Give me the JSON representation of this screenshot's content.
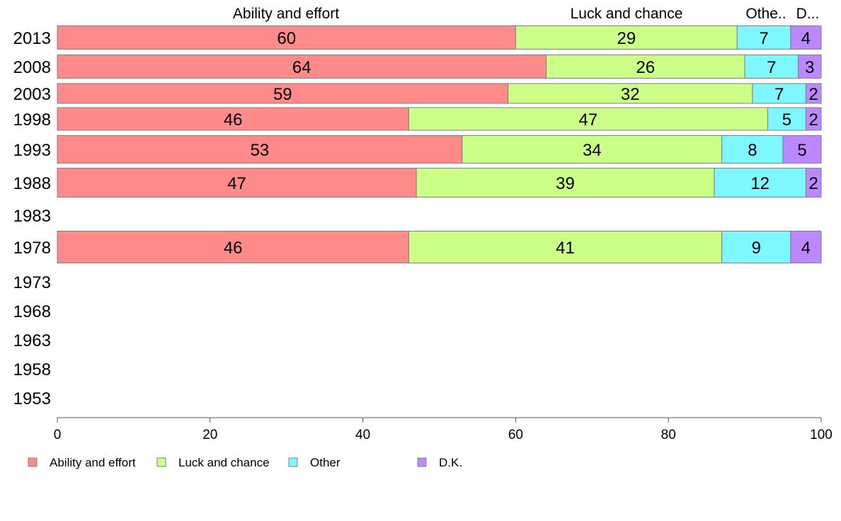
{
  "chart_data": {
    "type": "bar",
    "orientation": "horizontal",
    "stacked": true,
    "categories": [
      "2013",
      "2008",
      "2003",
      "1998",
      "1993",
      "1988",
      "1983",
      "1978",
      "1973",
      "1968",
      "1963",
      "1958",
      "1953"
    ],
    "series": [
      {
        "name": "Ability and effort",
        "color": "#ff8a8a",
        "values": [
          60,
          64,
          59,
          46,
          53,
          47,
          null,
          46,
          null,
          null,
          null,
          null,
          null
        ]
      },
      {
        "name": "Luck and chance",
        "color": "#ccff88",
        "values": [
          29,
          26,
          32,
          47,
          34,
          39,
          null,
          41,
          null,
          null,
          null,
          null,
          null
        ]
      },
      {
        "name": "Other",
        "color": "#7ff7ff",
        "values": [
          7,
          7,
          7,
          5,
          8,
          12,
          null,
          9,
          null,
          null,
          null,
          null,
          null
        ]
      },
      {
        "name": "D.K.",
        "color": "#bb88ff",
        "values": [
          4,
          3,
          2,
          2,
          5,
          2,
          null,
          4,
          null,
          null,
          null,
          null,
          null
        ]
      }
    ],
    "top_labels": [
      "Ability and effort",
      "Luck and chance",
      "Othe..",
      "D..."
    ],
    "xlim": [
      0,
      100
    ],
    "xticks": [
      "0",
      "20",
      "40",
      "60",
      "80",
      "100"
    ],
    "grid": false,
    "legend_position": "bottom-left"
  }
}
